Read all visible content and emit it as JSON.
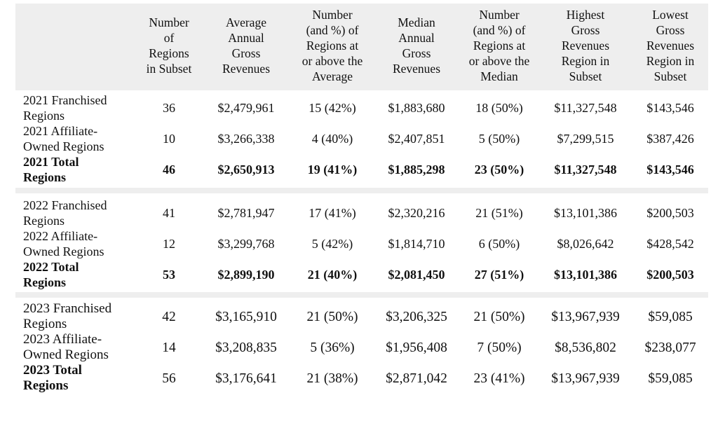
{
  "headers": [
    "Number of Regions in Subset",
    "Average Annual Gross Revenues",
    "Number (and %) of Regions at or above the Average",
    "Median Annual Gross Revenues",
    "Number (and %) of Regions at or above the Median",
    "Highest Gross Revenues Region in Subset",
    "Lowest Gross Revenues Region in Subset"
  ],
  "headers_lines": [
    [
      "Number",
      "of",
      "Regions",
      "in Subset"
    ],
    [
      "Average",
      "Annual",
      "Gross",
      "Revenues"
    ],
    [
      "Number",
      "(and %) of",
      "Regions at",
      "or above the",
      "Average"
    ],
    [
      "Median",
      "Annual",
      "Gross",
      "Revenues"
    ],
    [
      "Number",
      "(and %) of",
      "Regions at",
      "or above the",
      "Median"
    ],
    [
      "Highest",
      "Gross",
      "Revenues",
      "Region in",
      "Subset"
    ],
    [
      "Lowest",
      "Gross",
      "Revenues",
      "Region in",
      "Subset"
    ]
  ],
  "groups": [
    {
      "rows": [
        {
          "label": [
            "2021 Franchised",
            "Regions"
          ],
          "bold": false,
          "values": [
            "36",
            "$2,479,961",
            "15 (42%)",
            "$1,883,680",
            "18 (50%)",
            "$11,327,548",
            "$143,546"
          ]
        },
        {
          "label": [
            "2021 Affiliate-",
            "Owned Regions"
          ],
          "bold": false,
          "values": [
            "10",
            "$3,266,338",
            "4 (40%)",
            "$2,407,851",
            "5 (50%)",
            "$7,299,515",
            "$387,426"
          ]
        },
        {
          "label": [
            "2021 Total",
            "Regions"
          ],
          "bold": true,
          "values": [
            "46",
            "$2,650,913",
            "19 (41%)",
            "$1,885,298",
            "23 (50%)",
            "$11,327,548",
            "$143,546"
          ]
        }
      ]
    },
    {
      "rows": [
        {
          "label": [
            "2022 Franchised",
            "Regions"
          ],
          "bold": false,
          "values": [
            "41",
            "$2,781,947",
            "17 (41%)",
            "$2,320,216",
            "21 (51%)",
            "$13,101,386",
            "$200,503"
          ]
        },
        {
          "label": [
            "2022 Affiliate-",
            "Owned Regions"
          ],
          "bold": false,
          "values": [
            "12",
            "$3,299,768",
            "5 (42%)",
            "$1,814,710",
            "6 (50%)",
            "$8,026,642",
            "$428,542"
          ]
        },
        {
          "label": [
            "2022 Total",
            "Regions"
          ],
          "bold": true,
          "values": [
            "53",
            "$2,899,190",
            "21 (40%)",
            "$2,081,450",
            "27 (51%)",
            "$13,101,386",
            "$200,503"
          ]
        }
      ]
    },
    {
      "rows": [
        {
          "label": [
            "2023 Franchised",
            "Regions"
          ],
          "bold": false,
          "values": [
            "42",
            "$3,165,910",
            "21 (50%)",
            "$3,206,325",
            "21 (50%)",
            "$13,967,939",
            "$59,085"
          ]
        },
        {
          "label": [
            "2023 Affiliate-",
            "Owned Regions"
          ],
          "bold": false,
          "values": [
            "14",
            "$3,208,835",
            "5 (36%)",
            "$1,956,408",
            "7 (50%)",
            "$8,536,802",
            "$238,077"
          ]
        },
        {
          "label": [
            "2023 Total",
            "Regions"
          ],
          "bold": true,
          "value_bold": false,
          "values": [
            "56",
            "$3,176,641",
            "21 (38%)",
            "$2,871,042",
            "23 (41%)",
            "$13,967,939",
            "$59,085"
          ]
        }
      ]
    }
  ]
}
